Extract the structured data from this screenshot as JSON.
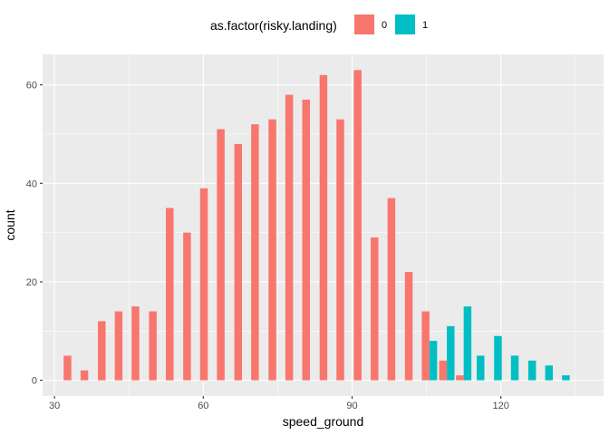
{
  "chart_data": {
    "type": "bar",
    "title": "",
    "xlabel": "speed_ground",
    "ylabel": "count",
    "xlim": [
      27.6,
      140.7
    ],
    "ylim": [
      -3.2,
      66.2
    ],
    "x_ticks": [
      30,
      60,
      90,
      120
    ],
    "y_ticks": [
      0,
      20,
      40,
      60
    ],
    "grid": true,
    "bin_width": 3.44,
    "legend": {
      "title": "as.factor(risky.landing)",
      "position": "top",
      "entries": [
        "0",
        "1"
      ]
    },
    "series": [
      {
        "name": "0",
        "color": "#F8766D",
        "points": [
          {
            "x": 33.4,
            "y": 5
          },
          {
            "x": 36.8,
            "y": 2
          },
          {
            "x": 40.3,
            "y": 12
          },
          {
            "x": 43.7,
            "y": 14
          },
          {
            "x": 47.1,
            "y": 15
          },
          {
            "x": 50.6,
            "y": 14
          },
          {
            "x": 54.0,
            "y": 35
          },
          {
            "x": 57.5,
            "y": 30
          },
          {
            "x": 60.9,
            "y": 39
          },
          {
            "x": 64.3,
            "y": 51
          },
          {
            "x": 67.8,
            "y": 48
          },
          {
            "x": 71.2,
            "y": 52
          },
          {
            "x": 74.7,
            "y": 53
          },
          {
            "x": 78.1,
            "y": 58
          },
          {
            "x": 81.5,
            "y": 57
          },
          {
            "x": 85.0,
            "y": 62
          },
          {
            "x": 88.4,
            "y": 53
          },
          {
            "x": 91.9,
            "y": 63
          },
          {
            "x": 95.3,
            "y": 29
          },
          {
            "x": 98.7,
            "y": 37
          },
          {
            "x": 102.2,
            "y": 22
          },
          {
            "x": 105.6,
            "y": 14
          },
          {
            "x": 109.1,
            "y": 4
          },
          {
            "x": 112.5,
            "y": 1
          }
        ]
      },
      {
        "name": "1",
        "color": "#00BFC4",
        "points": [
          {
            "x": 105.6,
            "y": 8
          },
          {
            "x": 109.1,
            "y": 11
          },
          {
            "x": 112.5,
            "y": 15
          },
          {
            "x": 115.9,
            "y": 5
          },
          {
            "x": 119.4,
            "y": 9
          },
          {
            "x": 122.8,
            "y": 5
          },
          {
            "x": 126.3,
            "y": 4
          },
          {
            "x": 129.7,
            "y": 3
          },
          {
            "x": 133.1,
            "y": 1
          }
        ]
      }
    ]
  }
}
